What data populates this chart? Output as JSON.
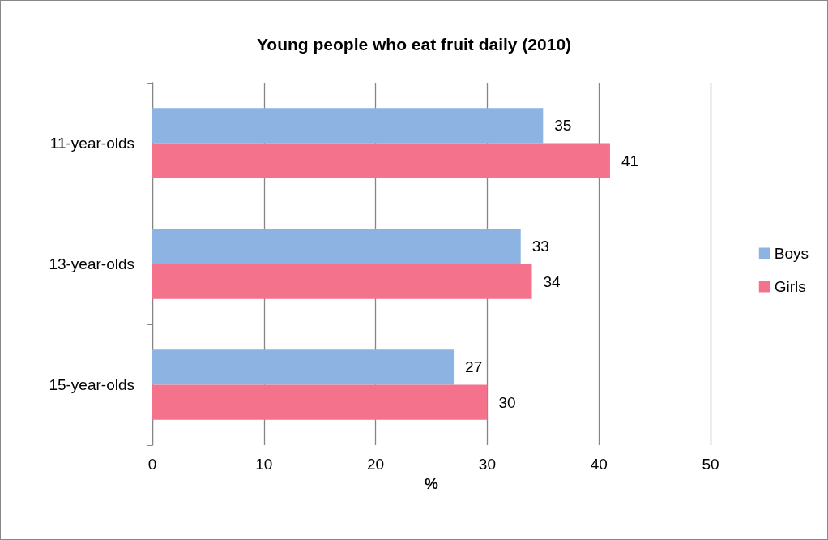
{
  "chart_data": {
    "type": "bar",
    "orientation": "horizontal",
    "title": "Young people who eat fruit daily (2010)",
    "xlabel": "%",
    "categories": [
      "11-year-olds",
      "13-year-olds",
      "15-year-olds"
    ],
    "series": [
      {
        "name": "Boys",
        "color": "#8db3e2",
        "values": [
          35,
          33,
          27
        ]
      },
      {
        "name": "Girls",
        "color": "#f4728c",
        "values": [
          41,
          34,
          30
        ]
      }
    ],
    "xlim": [
      0,
      50
    ],
    "xticks": [
      0,
      10,
      20,
      30,
      40,
      50
    ],
    "grid": "x",
    "legend": "right",
    "data_labels": true
  }
}
